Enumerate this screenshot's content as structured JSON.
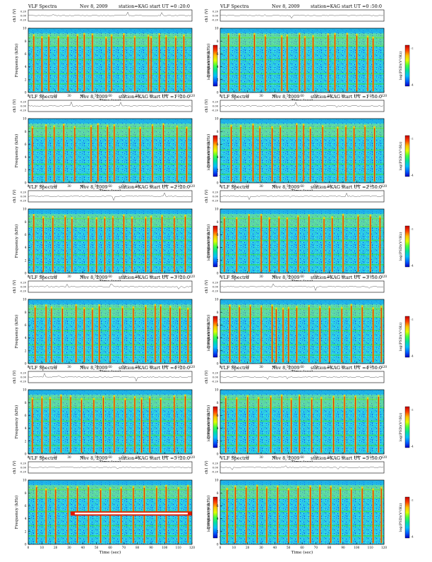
{
  "colors": {
    "background": "#ffffff",
    "colorbar_stops": [
      "#0000c8",
      "#0060ff",
      "#00c0ff",
      "#00e0a0",
      "#40ff40",
      "#e0ff00",
      "#ffc000",
      "#ff4000",
      "#c80000"
    ],
    "axis": "#000000"
  },
  "chart_data": [
    {
      "type": "heatmap",
      "header": {
        "left": "VLF Spectra",
        "date": "Nov 8, 2009",
        "station": "station=KAG",
        "start": "start  UT =0 :20:0"
      },
      "ts_ylabel": "ch1 (V)",
      "ts_ticks": [
        "0.20",
        "0.00",
        "-0.20"
      ],
      "ylabel": "Frequency (kHz)",
      "y_ticks": [
        "10",
        "8",
        "6",
        "4",
        "2",
        "0"
      ],
      "ylim": [
        0,
        10
      ],
      "xlabel": "Time (sec)",
      "x_ticks": [
        "0",
        "10",
        "20",
        "30",
        "40",
        "50",
        "60",
        "70",
        "80",
        "90",
        "100",
        "110",
        "120"
      ],
      "xlim": [
        0,
        120
      ],
      "colorbar_label": "log(PSD)(V²/Hz)",
      "colorbar_ticks": [
        "-2",
        "-4"
      ],
      "bursts": [
        4,
        10,
        15,
        22,
        29,
        36,
        41,
        47,
        57,
        61,
        70,
        78,
        88,
        90,
        96,
        101,
        108,
        114
      ]
    },
    {
      "type": "heatmap",
      "header": {
        "left": "VLF Spectra",
        "date": "Nov 8, 2009",
        "station": "station=KAG",
        "start": "start  UT =0 :50:0"
      },
      "ts_ylabel": "ch1 (V)",
      "ts_ticks": [
        "0.20",
        "0.00",
        "-0.20"
      ],
      "ylabel": "Frequency (kHz)",
      "y_ticks": [
        "10",
        "8",
        "6",
        "4",
        "2",
        "0"
      ],
      "ylim": [
        0,
        10
      ],
      "xlabel": "Time (sec)",
      "x_ticks": [
        "0",
        "10",
        "20",
        "30",
        "40",
        "50",
        "60",
        "70",
        "80",
        "90",
        "100",
        "110",
        "120"
      ],
      "xlim": [
        0,
        120
      ],
      "colorbar_label": "log(PSD)(V²/Hz)",
      "colorbar_ticks": [
        "-2",
        "-4"
      ],
      "bursts": [
        6,
        14,
        25,
        33,
        45,
        49,
        58,
        62,
        68,
        79,
        84,
        93,
        100,
        108,
        112
      ]
    },
    {
      "type": "heatmap",
      "header": {
        "left": "VLF Spectra",
        "date": "Nov 8, 2009",
        "station": "station=KAG",
        "start": "start  UT =1 :20:0"
      },
      "ts_ylabel": "ch1 (V)",
      "ts_ticks": [
        "0.20",
        "0.00",
        "-0.20"
      ],
      "ylabel": "Frequency (kHz)",
      "y_ticks": [
        "10",
        "8",
        "6",
        "4",
        "2",
        "0"
      ],
      "ylim": [
        0,
        10
      ],
      "xlabel": "Time (sec)",
      "x_ticks": [
        "0",
        "10",
        "20",
        "30",
        "40",
        "50",
        "60",
        "70",
        "80",
        "90",
        "100",
        "110",
        "120"
      ],
      "xlim": [
        0,
        120
      ],
      "colorbar_label": "log(PSD)(V²/Hz)",
      "colorbar_ticks": [
        "-2",
        "-4"
      ],
      "bursts": [
        3,
        13,
        19,
        26,
        34,
        46,
        51,
        58,
        63,
        74,
        82,
        91,
        99,
        109,
        116
      ]
    },
    {
      "type": "heatmap",
      "header": {
        "left": "VLF Spectra",
        "date": "Nov 8, 2009",
        "station": "station=KAG",
        "start": "start  UT =1 :50:0"
      },
      "ts_ylabel": "ch1 (V)",
      "ts_ticks": [
        "0.20",
        "0.00",
        "-0.20"
      ],
      "ylabel": "Frequency (kHz)",
      "y_ticks": [
        "10",
        "8",
        "6",
        "4",
        "2",
        "0"
      ],
      "ylim": [
        0,
        10
      ],
      "xlabel": "Time (sec)",
      "x_ticks": [
        "0",
        "10",
        "20",
        "30",
        "40",
        "50",
        "60",
        "70",
        "80",
        "90",
        "100",
        "110",
        "120"
      ],
      "xlim": [
        0,
        120
      ],
      "colorbar_label": "log(PSD)(V²/Hz)",
      "colorbar_ticks": [
        "-2",
        "-4"
      ],
      "bursts": [
        8,
        15,
        24,
        29,
        38,
        44,
        56,
        61,
        66,
        75,
        86,
        92,
        98,
        106,
        113
      ]
    },
    {
      "type": "heatmap",
      "header": {
        "left": "VLF Spectra",
        "date": "Nov 8, 2009",
        "station": "station=KAG",
        "start": "start  UT =2 :20:0"
      },
      "ts_ylabel": "ch1 (V)",
      "ts_ticks": [
        "0.20",
        "0.00",
        "-0.20"
      ],
      "ylabel": "Frequency (kHz)",
      "y_ticks": [
        "10",
        "8",
        "6",
        "4",
        "2",
        "0"
      ],
      "ylim": [
        0,
        10
      ],
      "xlabel": "Time (sec)",
      "x_ticks": [
        "0",
        "10",
        "20",
        "30",
        "40",
        "50",
        "60",
        "70",
        "80",
        "90",
        "100",
        "110",
        "120"
      ],
      "xlim": [
        0,
        120
      ],
      "colorbar_label": "log(PSD)(V²/Hz)",
      "colorbar_ticks": [
        "-2",
        "-4"
      ],
      "bursts": [
        4,
        11,
        18,
        27,
        32,
        44,
        50,
        56,
        62,
        70,
        76,
        86,
        90,
        98,
        107,
        115
      ]
    },
    {
      "type": "heatmap",
      "header": {
        "left": "VLF Spectra",
        "date": "Nov 8, 2009",
        "station": "station=KAG",
        "start": "start  UT =2 :50:0"
      },
      "ts_ylabel": "ch1 (V)",
      "ts_ticks": [
        "0.20",
        "0.00",
        "-0.20"
      ],
      "ylabel": "Frequency (kHz)",
      "y_ticks": [
        "10",
        "8",
        "6",
        "4",
        "2",
        "0"
      ],
      "ylim": [
        0,
        10
      ],
      "xlabel": "Time (sec)",
      "x_ticks": [
        "0",
        "10",
        "20",
        "30",
        "40",
        "50",
        "60",
        "70",
        "80",
        "90",
        "100",
        "110",
        "120"
      ],
      "xlim": [
        0,
        120
      ],
      "colorbar_label": "log(PSD)(V²/Hz)",
      "colorbar_ticks": [
        "-2",
        "-4"
      ],
      "bursts": [
        3,
        12,
        21,
        30,
        36,
        43,
        49,
        57,
        65,
        76,
        82,
        90,
        101,
        110,
        117
      ]
    },
    {
      "type": "heatmap",
      "header": {
        "left": "VLF Spectra",
        "date": "Nov 8, 2009",
        "station": "station=KAG",
        "start": "start  UT =3 :20:0"
      },
      "ts_ylabel": "ch1 (V)",
      "ts_ticks": [
        "0.20",
        "0.00",
        "-0.20"
      ],
      "ylabel": "Frequency (kHz)",
      "y_ticks": [
        "10",
        "8",
        "6",
        "4",
        "2",
        "0"
      ],
      "ylim": [
        0,
        10
      ],
      "xlabel": "Time (sec)",
      "x_ticks": [
        "0",
        "10",
        "20",
        "30",
        "40",
        "50",
        "60",
        "70",
        "80",
        "90",
        "100",
        "110",
        "120"
      ],
      "xlim": [
        0,
        120
      ],
      "colorbar_label": "log(PSD)(V²/Hz)",
      "colorbar_ticks": [
        "-2",
        "-4"
      ],
      "bursts": [
        5,
        13,
        17,
        25,
        35,
        41,
        47,
        52,
        60,
        69,
        77,
        86,
        93,
        97,
        104,
        111,
        117
      ]
    },
    {
      "type": "heatmap",
      "header": {
        "left": "VLF Spectra",
        "date": "Nov 8, 2009",
        "station": "station=KAG",
        "start": "start  UT =3 :50:0"
      },
      "ts_ylabel": "ch1 (V)",
      "ts_ticks": [
        "0.20",
        "0.00",
        "-0.20"
      ],
      "ylabel": "Frequency (kHz)",
      "y_ticks": [
        "10",
        "8",
        "6",
        "4",
        "2",
        "0"
      ],
      "ylim": [
        0,
        10
      ],
      "xlabel": "Time (sec)",
      "x_ticks": [
        "0",
        "10",
        "20",
        "30",
        "40",
        "50",
        "60",
        "70",
        "80",
        "90",
        "100",
        "110",
        "120"
      ],
      "xlim": [
        0,
        120
      ],
      "colorbar_label": "log(PSD)(V²/Hz)",
      "colorbar_ticks": [
        "-2",
        "-4"
      ],
      "bursts": [
        7,
        14,
        22,
        30,
        38,
        41,
        46,
        50,
        56,
        65,
        73,
        80,
        89,
        96,
        104,
        112,
        118
      ]
    },
    {
      "type": "heatmap",
      "header": {
        "left": "VLF Spectra",
        "date": "Nov 8, 2009",
        "station": "station=KAG",
        "start": "start  UT =4 :20:0"
      },
      "ts_ylabel": "ch1 (V)",
      "ts_ticks": [
        "0.20",
        "0.00",
        "-0.20"
      ],
      "ylabel": "Frequency (kHz)",
      "y_ticks": [
        "10",
        "8",
        "6",
        "4",
        "2",
        "0"
      ],
      "ylim": [
        0,
        10
      ],
      "xlabel": "Time (sec)",
      "x_ticks": [
        "0",
        "10",
        "20",
        "30",
        "40",
        "50",
        "60",
        "70",
        "80",
        "90",
        "100",
        "110",
        "120"
      ],
      "xlim": [
        0,
        120
      ],
      "colorbar_label": "log(PSD)(V²/Hz)",
      "colorbar_ticks": [
        "-2",
        "-4"
      ],
      "bursts": [
        3,
        10,
        16,
        24,
        31,
        39,
        48,
        55,
        63,
        71,
        78,
        83,
        89,
        97,
        107,
        115
      ]
    },
    {
      "type": "heatmap",
      "header": {
        "left": "VLF Spectra",
        "date": "Nov 8, 2009",
        "station": "station=KAG",
        "start": "start  UT =4 :50:0"
      },
      "ts_ylabel": "ch1 (V)",
      "ts_ticks": [
        "0.20",
        "0.00",
        "-0.20"
      ],
      "ylabel": "Frequency (kHz)",
      "y_ticks": [
        "10",
        "8",
        "6",
        "4",
        "2",
        "0"
      ],
      "ylim": [
        0,
        10
      ],
      "xlabel": "Time (sec)",
      "x_ticks": [
        "0",
        "10",
        "20",
        "30",
        "40",
        "50",
        "60",
        "70",
        "80",
        "90",
        "100",
        "110",
        "120"
      ],
      "xlim": [
        0,
        120
      ],
      "colorbar_label": "log(PSD)(V²/Hz)",
      "colorbar_ticks": [
        "-2",
        "-4"
      ],
      "bursts": [
        4,
        12,
        20,
        28,
        37,
        45,
        52,
        58,
        67,
        74,
        83,
        91,
        99,
        108,
        116
      ]
    },
    {
      "type": "heatmap",
      "header": {
        "left": "VLF Spectra",
        "date": "Nov 8, 2009",
        "station": "station=KAG",
        "start": "start  UT =5 :20:0"
      },
      "ts_ylabel": "ch1 (V)",
      "ts_ticks": [
        "0.20",
        "0.00",
        "-0.20"
      ],
      "ylabel": "Frequency (kHz)",
      "y_ticks": [
        "10",
        "8",
        "6",
        "4",
        "2",
        "0"
      ],
      "ylim": [
        0,
        10
      ],
      "xlabel": "Time (sec)",
      "x_ticks": [
        "0",
        "10",
        "20",
        "30",
        "40",
        "50",
        "60",
        "70",
        "80",
        "90",
        "100",
        "110",
        "120"
      ],
      "xlim": [
        0,
        120
      ],
      "colorbar_label": "log(PSD)(V²/Hz)",
      "colorbar_ticks": [
        "-2",
        "-4"
      ],
      "bursts": [
        6,
        13,
        20,
        29,
        36,
        44,
        53,
        60,
        68,
        77,
        85,
        94,
        101,
        110,
        117
      ],
      "tone": {
        "start_sec": 31,
        "end_sec": 120,
        "freq_khz": 4.8
      }
    },
    {
      "type": "heatmap",
      "header": {
        "left": "VLF Spectra",
        "date": "Nov 8, 2009",
        "station": "station=KAG",
        "start": "start  UT =5 :50:0"
      },
      "ts_ylabel": "ch1 (V)",
      "ts_ticks": [
        "0.20",
        "0.00",
        "-0.20"
      ],
      "ylabel": "Frequency (kHz)",
      "y_ticks": [
        "10",
        "8",
        "6",
        "4",
        "2",
        "0"
      ],
      "ylim": [
        0,
        10
      ],
      "xlabel": "Time (sec)",
      "x_ticks": [
        "0",
        "10",
        "20",
        "30",
        "40",
        "50",
        "60",
        "70",
        "80",
        "90",
        "100",
        "110",
        "120"
      ],
      "xlim": [
        0,
        120
      ],
      "colorbar_label": "log(PSD)(V²/Hz)",
      "colorbar_ticks": [
        "-2",
        "-4"
      ],
      "bursts": [
        5,
        11,
        19,
        27,
        34,
        42,
        50,
        57,
        66,
        73,
        81,
        88,
        96,
        104,
        112,
        118
      ]
    }
  ]
}
